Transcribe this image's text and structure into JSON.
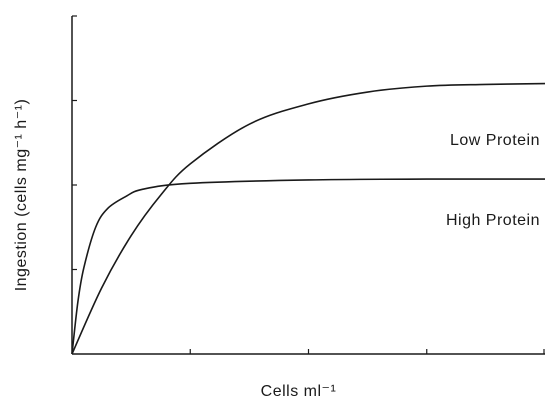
{
  "chart_data": {
    "type": "line",
    "title": "",
    "xlabel": "Cells ml⁻¹",
    "ylabel": "Ingestion (cells mg⁻¹ h⁻¹)",
    "x_ticks_count": 4,
    "y_ticks_count": 4,
    "xlim": [
      0,
      4
    ],
    "ylim": [
      0,
      4
    ],
    "grid": false,
    "legend": "direct labels",
    "series": [
      {
        "name": "Low Protein",
        "points": [
          [
            0,
            0
          ],
          [
            0.25,
            0.78
          ],
          [
            0.5,
            1.4
          ],
          [
            0.75,
            1.88
          ],
          [
            1,
            2.25
          ],
          [
            1.5,
            2.72
          ],
          [
            2,
            2.96
          ],
          [
            2.5,
            3.1
          ],
          [
            3,
            3.17
          ],
          [
            3.5,
            3.19
          ],
          [
            4,
            3.2
          ]
        ]
      },
      {
        "name": "High Protein",
        "points": [
          [
            0,
            0
          ],
          [
            0.05,
            0.62
          ],
          [
            0.1,
            1.02
          ],
          [
            0.2,
            1.5
          ],
          [
            0.3,
            1.72
          ],
          [
            0.45,
            1.86
          ],
          [
            0.6,
            1.95
          ],
          [
            1,
            2.02
          ],
          [
            2,
            2.06
          ],
          [
            3,
            2.07
          ],
          [
            4,
            2.07
          ]
        ]
      }
    ]
  }
}
